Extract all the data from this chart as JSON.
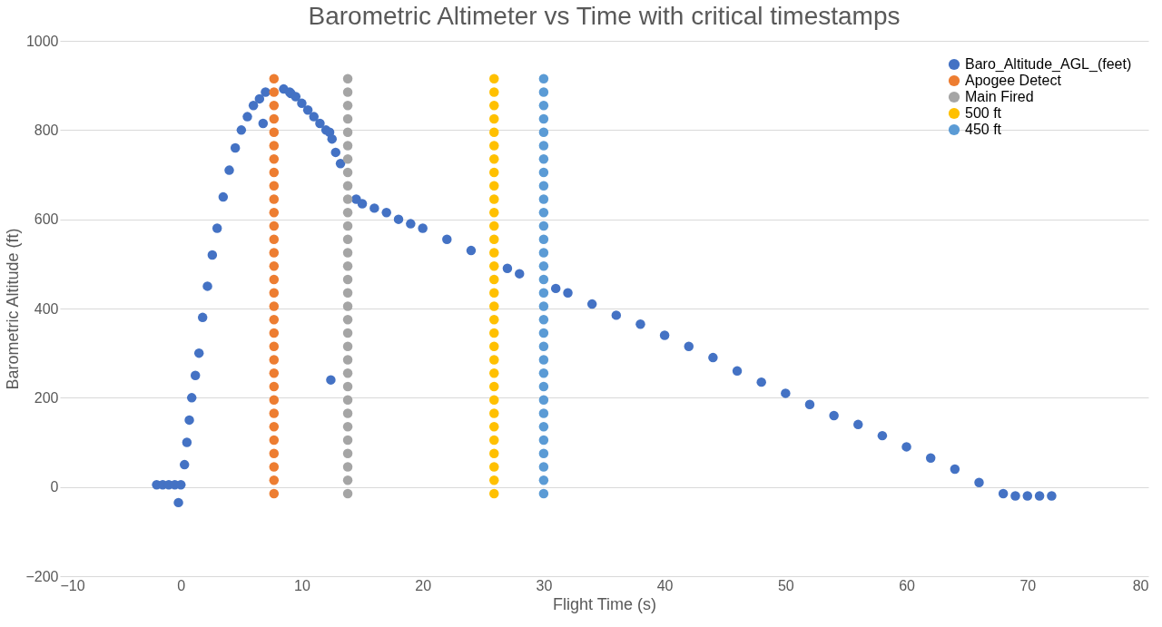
{
  "chart_data": {
    "type": "scatter",
    "title": "Barometric Altimeter vs Time with critical timestamps",
    "xlabel": "Flight Time (s)",
    "ylabel": "Barometric Altitude (ft)",
    "xlim": [
      -10,
      80
    ],
    "xticks": [
      -10,
      0,
      10,
      20,
      30,
      40,
      50,
      60,
      70,
      80
    ],
    "ylim": [
      -200,
      1000
    ],
    "yticks": [
      -200,
      0,
      200,
      400,
      600,
      800,
      1000
    ],
    "grid": "y",
    "legend": "top right",
    "marker": "circle",
    "series": [
      {
        "name": "Baro_Altitude_AGL_(feet)",
        "color": "#4472c4",
        "x": [
          -2,
          -1.5,
          -1,
          -0.5,
          -0.2,
          0,
          0.3,
          0.5,
          0.7,
          0.9,
          1.2,
          1.5,
          1.8,
          2.2,
          2.6,
          3,
          3.5,
          4,
          4.5,
          5,
          5.5,
          6,
          6.5,
          6.8,
          7,
          8.5,
          9,
          9.1,
          9.5,
          10,
          10.5,
          11,
          11.5,
          12,
          12.3,
          12.4,
          12.5,
          12.8,
          13.2,
          14.5,
          15,
          16,
          17,
          18,
          19,
          20,
          22,
          24,
          27,
          28,
          31,
          32,
          34,
          36,
          38,
          40,
          42,
          44,
          46,
          48,
          50,
          52,
          54,
          56,
          58,
          60,
          62,
          64,
          66,
          68,
          69,
          70,
          71,
          72
        ],
        "values": [
          5,
          5,
          5,
          5,
          -35,
          5,
          50,
          100,
          150,
          200,
          250,
          300,
          380,
          450,
          520,
          580,
          650,
          710,
          760,
          800,
          830,
          855,
          870,
          815,
          885,
          892,
          885,
          882,
          875,
          860,
          845,
          830,
          815,
          800,
          795,
          240,
          780,
          750,
          725,
          645,
          635,
          625,
          615,
          600,
          590,
          580,
          555,
          530,
          490,
          478,
          445,
          435,
          410,
          385,
          365,
          340,
          315,
          290,
          260,
          235,
          210,
          185,
          160,
          140,
          115,
          90,
          65,
          40,
          10,
          -15,
          -20,
          -20,
          -20,
          -20
        ]
      },
      {
        "name": "Apogee Detect",
        "color": "#ed7d31",
        "x": [
          7.7,
          7.7,
          7.7,
          7.7,
          7.7,
          7.7,
          7.7,
          7.7,
          7.7,
          7.7,
          7.7,
          7.7,
          7.7,
          7.7,
          7.7,
          7.7,
          7.7,
          7.7,
          7.7,
          7.7,
          7.7,
          7.7,
          7.7,
          7.7,
          7.7,
          7.7,
          7.7,
          7.7,
          7.7,
          7.7,
          7.7,
          7.7
        ],
        "values": [
          -15,
          15,
          45,
          75,
          105,
          135,
          165,
          195,
          225,
          255,
          285,
          315,
          345,
          375,
          405,
          435,
          465,
          495,
          525,
          555,
          585,
          615,
          645,
          675,
          705,
          735,
          765,
          795,
          825,
          855,
          885,
          915
        ]
      },
      {
        "name": "Main Fired",
        "color": "#a5a5a5",
        "x": [
          13.8,
          13.8,
          13.8,
          13.8,
          13.8,
          13.8,
          13.8,
          13.8,
          13.8,
          13.8,
          13.8,
          13.8,
          13.8,
          13.8,
          13.8,
          13.8,
          13.8,
          13.8,
          13.8,
          13.8,
          13.8,
          13.8,
          13.8,
          13.8,
          13.8,
          13.8,
          13.8,
          13.8,
          13.8,
          13.8,
          13.8,
          13.8
        ],
        "values": [
          -15,
          15,
          45,
          75,
          105,
          135,
          165,
          195,
          225,
          255,
          285,
          315,
          345,
          375,
          405,
          435,
          465,
          495,
          525,
          555,
          585,
          615,
          645,
          675,
          705,
          735,
          765,
          795,
          825,
          855,
          885,
          915
        ]
      },
      {
        "name": "500 ft",
        "color": "#ffc000",
        "x": [
          25.9,
          25.9,
          25.9,
          25.9,
          25.9,
          25.9,
          25.9,
          25.9,
          25.9,
          25.9,
          25.9,
          25.9,
          25.9,
          25.9,
          25.9,
          25.9,
          25.9,
          25.9,
          25.9,
          25.9,
          25.9,
          25.9,
          25.9,
          25.9,
          25.9,
          25.9,
          25.9,
          25.9,
          25.9,
          25.9,
          25.9,
          25.9
        ],
        "values": [
          -15,
          15,
          45,
          75,
          105,
          135,
          165,
          195,
          225,
          255,
          285,
          315,
          345,
          375,
          405,
          435,
          465,
          495,
          525,
          555,
          585,
          615,
          645,
          675,
          705,
          735,
          765,
          795,
          825,
          855,
          885,
          915
        ]
      },
      {
        "name": "450 ft",
        "color": "#5b9bd5",
        "x": [
          30,
          30,
          30,
          30,
          30,
          30,
          30,
          30,
          30,
          30,
          30,
          30,
          30,
          30,
          30,
          30,
          30,
          30,
          30,
          30,
          30,
          30,
          30,
          30,
          30,
          30,
          30,
          30,
          30,
          30,
          30,
          30
        ],
        "values": [
          -15,
          15,
          45,
          75,
          105,
          135,
          165,
          195,
          225,
          255,
          285,
          315,
          345,
          375,
          405,
          435,
          465,
          495,
          525,
          555,
          585,
          615,
          645,
          675,
          705,
          735,
          765,
          795,
          825,
          855,
          885,
          915
        ]
      }
    ]
  }
}
